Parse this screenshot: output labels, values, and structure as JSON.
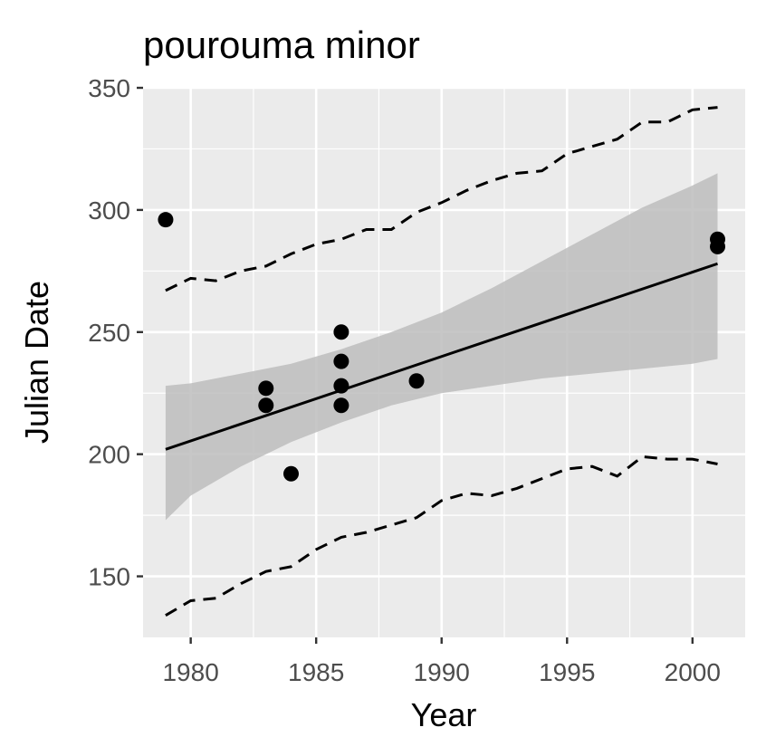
{
  "chart_data": {
    "type": "scatter",
    "title": "pourouma minor",
    "xlabel": "Year",
    "ylabel": "Julian Date",
    "xlim": [
      1978.1,
      2002.1
    ],
    "ylim": [
      125,
      350
    ],
    "x_ticks": [
      1980,
      1985,
      1990,
      1995,
      2000
    ],
    "y_ticks": [
      150,
      200,
      250,
      300,
      350
    ],
    "grid": true,
    "points": [
      {
        "x": 1979,
        "y": 296
      },
      {
        "x": 1983,
        "y": 227
      },
      {
        "x": 1983,
        "y": 220
      },
      {
        "x": 1984,
        "y": 192
      },
      {
        "x": 1986,
        "y": 250
      },
      {
        "x": 1986,
        "y": 238
      },
      {
        "x": 1986,
        "y": 228
      },
      {
        "x": 1986,
        "y": 220
      },
      {
        "x": 1989,
        "y": 230
      },
      {
        "x": 2001,
        "y": 288
      },
      {
        "x": 2001,
        "y": 285
      }
    ],
    "fit_line": {
      "x": [
        1979,
        2001
      ],
      "y": [
        202,
        278
      ]
    },
    "confidence_band": {
      "x": [
        1979,
        1980,
        1982,
        1984,
        1986,
        1988,
        1990,
        1992,
        1994,
        1996,
        1998,
        2000,
        2001
      ],
      "upper": [
        228,
        229,
        233,
        237,
        243,
        250,
        258,
        268,
        279,
        290,
        301,
        310,
        315
      ],
      "lower": [
        173,
        183,
        195,
        205,
        213,
        220,
        225,
        228,
        231,
        233,
        235,
        237,
        239
      ]
    },
    "prediction_upper": {
      "x": [
        1979,
        1980,
        1981,
        1982,
        1983,
        1984,
        1985,
        1986,
        1987,
        1988,
        1989,
        1990,
        1991,
        1992,
        1993,
        1994,
        1995,
        1996,
        1997,
        1998,
        1999,
        2000,
        2001
      ],
      "y": [
        267,
        272,
        271,
        275,
        277,
        282,
        286,
        288,
        292,
        292,
        299,
        303,
        308,
        312,
        315,
        316,
        323,
        326,
        329,
        336,
        336,
        341,
        342
      ]
    },
    "prediction_lower": {
      "x": [
        1979,
        1980,
        1981,
        1982,
        1983,
        1984,
        1985,
        1986,
        1987,
        1988,
        1989,
        1990,
        1991,
        1992,
        1993,
        1994,
        1995,
        1996,
        1997,
        1998,
        1999,
        2000,
        2001
      ],
      "y": [
        134,
        140,
        141,
        147,
        152,
        154,
        161,
        166,
        168,
        171,
        174,
        181,
        184,
        183,
        186,
        190,
        194,
        195,
        191,
        199,
        198,
        198,
        196
      ]
    },
    "colors": {
      "panel": "#ebebeb",
      "grid": "#ffffff",
      "points": "#000000",
      "fit": "#000000",
      "band": "#bdbdbd"
    }
  }
}
